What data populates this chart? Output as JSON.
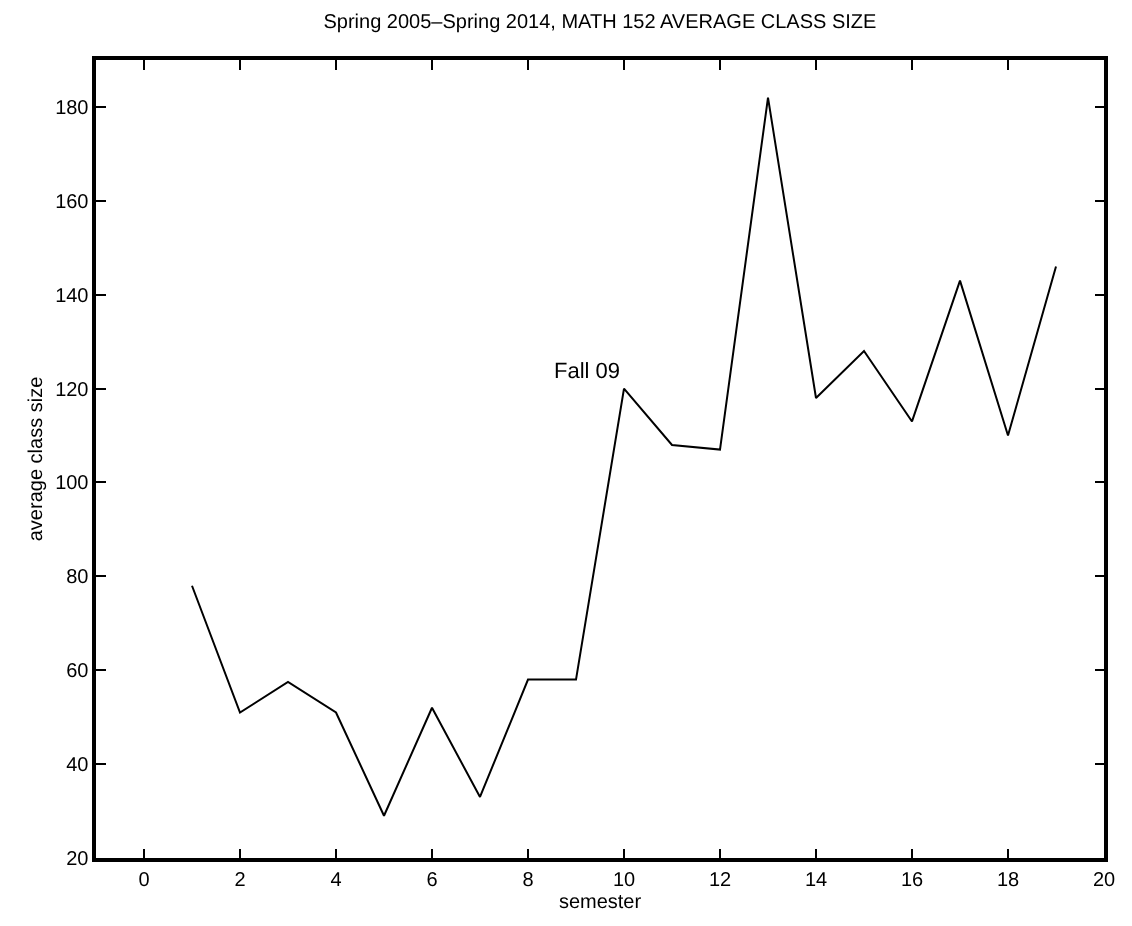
{
  "chart_data": {
    "type": "line",
    "title": "Spring 2005–Spring 2014, MATH 152 AVERAGE CLASS SIZE",
    "xlabel": "semester",
    "ylabel": "average class size",
    "x": [
      1,
      2,
      3,
      4,
      5,
      6,
      7,
      8,
      9,
      10,
      11,
      12,
      13,
      14,
      15,
      16,
      17,
      18,
      19
    ],
    "series": [
      {
        "color": "#000000",
        "values": [
          78,
          51,
          57.5,
          51,
          29,
          52,
          33,
          58,
          58,
          120,
          108,
          107,
          182,
          118,
          128,
          113,
          143,
          110,
          146
        ]
      }
    ],
    "annotations": [
      {
        "text": "Fall 09",
        "x": 10,
        "y": 120
      }
    ],
    "xlim": [
      -1,
      20
    ],
    "xticks": [
      0,
      2,
      4,
      6,
      8,
      10,
      12,
      14,
      16,
      18,
      20
    ],
    "ylim": [
      20,
      190
    ],
    "yticks": [
      20,
      40,
      60,
      80,
      100,
      120,
      140,
      160,
      180
    ],
    "marker": "none",
    "line_style": "solid"
  }
}
